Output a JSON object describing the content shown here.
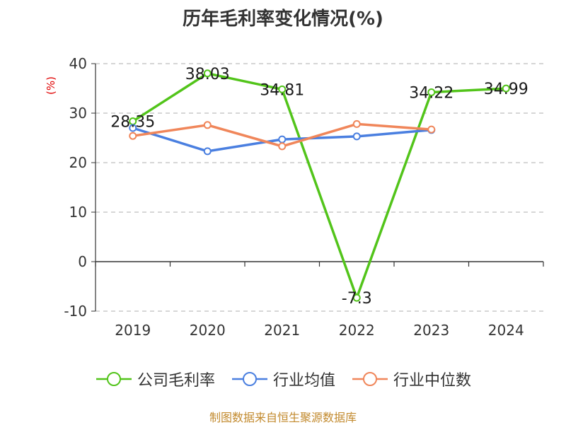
{
  "chart_data": {
    "type": "line",
    "title": "历年毛利率变化情况(%)",
    "ylabel": "(%)",
    "categories": [
      "2019",
      "2020",
      "2021",
      "2022",
      "2023",
      "2024"
    ],
    "ylim": [
      -10,
      40
    ],
    "yticks": [
      40,
      30,
      20,
      10,
      0,
      -10
    ],
    "ytick_labels": [
      "40",
      "30",
      "20",
      "10",
      "0",
      "-10"
    ],
    "grid": "horizontal dashed",
    "legend_position": "bottom",
    "series": [
      {
        "name": "公司毛利率",
        "color": "#52c41a",
        "values": [
          28.35,
          38.03,
          34.81,
          -7.3,
          34.22,
          34.99
        ],
        "labels": [
          "28.35",
          "38.03",
          "34.81",
          "-7.3",
          "34.22",
          "34.99"
        ]
      },
      {
        "name": "行业均值",
        "color": "#4a7fe0",
        "values": [
          27.0,
          22.3,
          24.7,
          25.3,
          26.6,
          null
        ]
      },
      {
        "name": "行业中位数",
        "color": "#f0865a",
        "values": [
          25.4,
          27.6,
          23.3,
          27.8,
          26.7,
          null
        ]
      }
    ]
  },
  "source_text": "制图数据来自恒生聚源数据库"
}
